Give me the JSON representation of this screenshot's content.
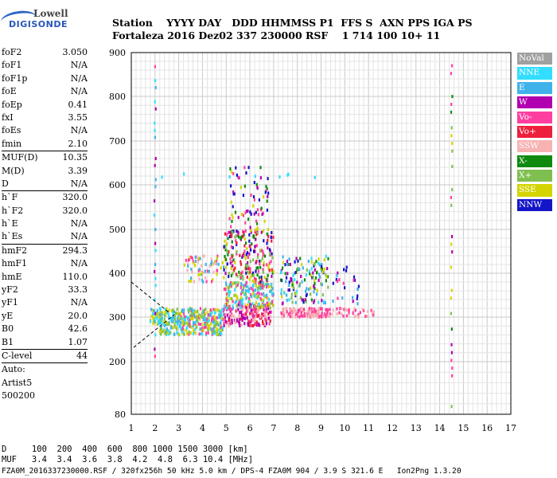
{
  "logo": {
    "line1": "Lowell",
    "line2": "DIGISONDE"
  },
  "header": {
    "line1": "Station    YYYY DAY   DDD HHMMSS P1  FFS S  AXN PPS IGA PS",
    "line2": "Fortaleza 2016 Dez02 337 230000 RSF    1 714 100 10+ 11"
  },
  "params": [
    {
      "k": "foF2",
      "v": "3.050"
    },
    {
      "k": "foF1",
      "v": "N/A"
    },
    {
      "k": "foF1p",
      "v": "N/A"
    },
    {
      "k": "foE",
      "v": "N/A"
    },
    {
      "k": "foEp",
      "v": "0.41"
    },
    {
      "k": "fxI",
      "v": "3.55"
    },
    {
      "k": "foEs",
      "v": "N/A"
    },
    {
      "k": "fmin",
      "v": "2.10"
    },
    {
      "k": "MUF(D)",
      "v": "10.35",
      "sep": true
    },
    {
      "k": "M(D)",
      "v": "3.39"
    },
    {
      "k": "D",
      "v": "N/A"
    },
    {
      "k": "h`F",
      "v": "320.0",
      "sep": true
    },
    {
      "k": "h`F2",
      "v": "320.0"
    },
    {
      "k": "h`E",
      "v": "N/A"
    },
    {
      "k": "h`Es",
      "v": "N/A"
    },
    {
      "k": "hmF2",
      "v": "294.3",
      "sep": true
    },
    {
      "k": "hmF1",
      "v": "N/A"
    },
    {
      "k": "hmE",
      "v": "110.0"
    },
    {
      "k": "yF2",
      "v": "33.3"
    },
    {
      "k": "yF1",
      "v": "N/A"
    },
    {
      "k": "yE",
      "v": "20.0"
    },
    {
      "k": "B0",
      "v": "42.6"
    },
    {
      "k": "B1",
      "v": "1.07"
    },
    {
      "k": "C-level",
      "v": "44",
      "sep": true
    },
    {
      "k": "Auto:",
      "v": "",
      "sep": true
    },
    {
      "k": "Artist5",
      "v": ""
    },
    {
      "k": "500200",
      "v": ""
    }
  ],
  "legend": [
    {
      "label": "NoVal",
      "color": "#a0a0a0"
    },
    {
      "label": "NNE",
      "color": "#33ddff"
    },
    {
      "label": "E",
      "color": "#3fb2ea"
    },
    {
      "label": "W",
      "color": "#b000b0"
    },
    {
      "label": "Vo-",
      "color": "#ff3fa0"
    },
    {
      "label": "Vo+",
      "color": "#ee1f3b"
    },
    {
      "label": "SSW",
      "color": "#f7b2b2"
    },
    {
      "label": "X-",
      "color": "#0f8a0f"
    },
    {
      "label": "X+",
      "color": "#7fbf4f"
    },
    {
      "label": "SSE",
      "color": "#d4d400"
    },
    {
      "label": "NNW",
      "color": "#1414c8"
    }
  ],
  "footer": {
    "line1": "D     100  200  400  600  800 1000 1500 3000 [km]",
    "line2": "MUF   3.4  3.4  3.6  3.8  4.2  4.8  6.3 10.4 [MHz]",
    "line3": "FZA0M_2016337230000.RSF / 320fx256h 50 kHz 5.0 km / DPS-4 FZA0M 904 / 3.9 S 321.6 E   Ion2Png 1.3.20"
  },
  "chart_data": {
    "type": "scatter",
    "title": "",
    "xlabel": "",
    "ylabel": "",
    "xlim": [
      1,
      17
    ],
    "ylim": [
      80,
      900
    ],
    "xticks": [
      1,
      2,
      3,
      4,
      5,
      6,
      7,
      8,
      9,
      10,
      11,
      12,
      13,
      14,
      15,
      16,
      17
    ],
    "yticks": [
      80,
      200,
      300,
      400,
      500,
      600,
      700,
      800,
      900
    ],
    "grid": true,
    "clusters": [
      {
        "x": [
          1.8,
          2.3
        ],
        "y": [
          280,
          320
        ],
        "n": 50,
        "colors": [
          "E",
          "NNE",
          "SSE"
        ]
      },
      {
        "x": [
          2.2,
          3.0
        ],
        "y": [
          260,
          320
        ],
        "n": 110,
        "colors": [
          "SSE",
          "E",
          "NNE",
          "X+"
        ]
      },
      {
        "x": [
          3.0,
          4.9
        ],
        "y": [
          260,
          320
        ],
        "n": 260,
        "colors": [
          "SSE",
          "E",
          "NNE",
          "X+",
          "Vo-"
        ]
      },
      {
        "x": [
          3.2,
          4.9
        ],
        "y": [
          380,
          440
        ],
        "n": 70,
        "colors": [
          "Vo-",
          "SSW",
          "E",
          "SSE"
        ]
      },
      {
        "x": [
          4.9,
          6.9
        ],
        "y": [
          280,
          330
        ],
        "n": 200,
        "colors": [
          "W",
          "Vo-",
          "Vo+",
          "SSW"
        ]
      },
      {
        "x": [
          4.9,
          7.0
        ],
        "y": [
          320,
          380
        ],
        "n": 200,
        "colors": [
          "E",
          "NNE",
          "SSE",
          "X+",
          "Vo-"
        ]
      },
      {
        "x": [
          4.9,
          7.0
        ],
        "y": [
          380,
          500
        ],
        "n": 220,
        "colors": [
          "Vo-",
          "SSE",
          "X-",
          "W",
          "NNW",
          "Vo+",
          "X+"
        ]
      },
      {
        "x": [
          5.0,
          6.8
        ],
        "y": [
          500,
          640
        ],
        "n": 70,
        "colors": [
          "Vo-",
          "SSE",
          "X-",
          "W",
          "NNW"
        ]
      },
      {
        "x": [
          7.3,
          9.3
        ],
        "y": [
          300,
          320
        ],
        "n": 140,
        "colors": [
          "SSW",
          "Vo-"
        ]
      },
      {
        "x": [
          7.3,
          9.3
        ],
        "y": [
          330,
          440
        ],
        "n": 150,
        "colors": [
          "SSE",
          "E",
          "NNE",
          "W",
          "NNW",
          "X-",
          "X+"
        ]
      },
      {
        "x": [
          9.3,
          11.3
        ],
        "y": [
          300,
          320
        ],
        "n": 40,
        "colors": [
          "SSW",
          "Vo-"
        ]
      },
      {
        "x": [
          9.4,
          10.6
        ],
        "y": [
          330,
          420
        ],
        "n": 25,
        "colors": [
          "Vo-",
          "W",
          "NNW",
          "E"
        ]
      }
    ],
    "lines": [
      {
        "x": [
          1.8,
          14.3
        ],
        "y": [
          620,
          620
        ],
        "colors": [
          "NNE"
        ],
        "note": "sparse row"
      }
    ],
    "vertical_traces": [
      {
        "x": 2.0,
        "y": [
          180,
          900
        ],
        "colors": [
          "NNE",
          "E",
          "Vo-",
          "W"
        ]
      },
      {
        "x": 14.5,
        "y": [
          80,
          870
        ],
        "colors": [
          "X-",
          "SSE",
          "Vo-",
          "W",
          "X+"
        ]
      }
    ],
    "fit_curves": [
      {
        "x": [
          1.0,
          2.6
        ],
        "y": [
          380,
          310
        ]
      },
      {
        "x": [
          1.1,
          2.8
        ],
        "y": [
          232,
          305
        ]
      }
    ]
  }
}
